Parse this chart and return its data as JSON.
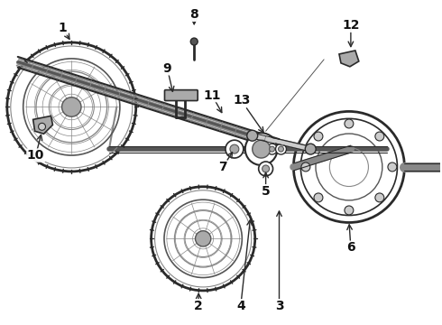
{
  "bg_color": "#ffffff",
  "fig_width": 4.9,
  "fig_height": 3.6,
  "dpi": 100,
  "line_color": "#2a2a2a",
  "gray1": "#555555",
  "gray2": "#888888",
  "gray3": "#aaaaaa",
  "gray4": "#cccccc",
  "label_color": "#111111",
  "label_fontsize": 10,
  "arrow_color": "#111111"
}
